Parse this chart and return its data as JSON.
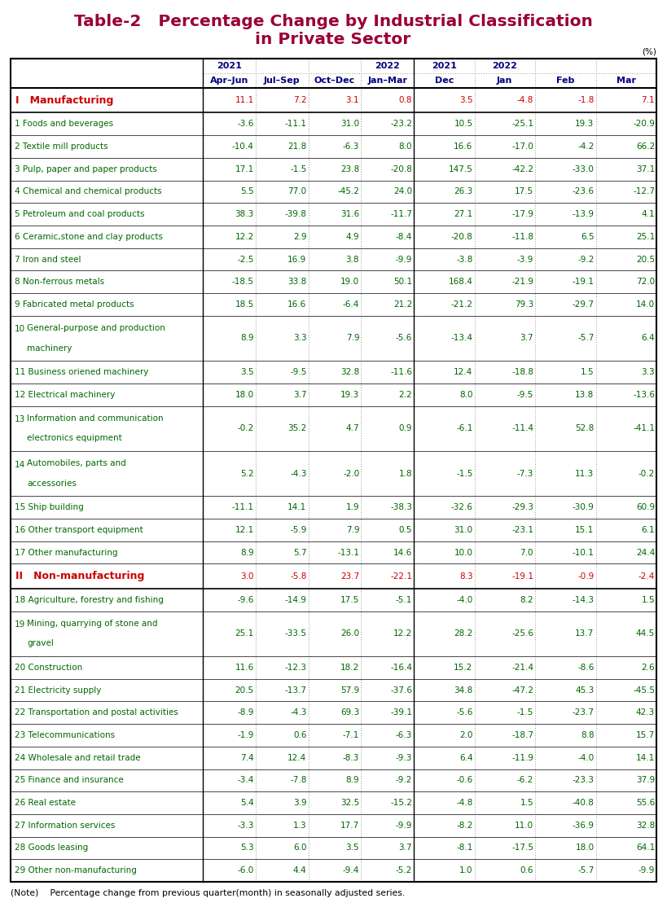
{
  "title_line1": "Table-2   Percentage Change by Industrial Classification",
  "title_line2": "in Private Sector",
  "title_color": "#990033",
  "header_color": "#000080",
  "note": "(Note)    Percentage change from previous quarter(month) in seasonally adjusted series.",
  "col_headers_top": [
    "2021",
    "",
    "",
    "2022",
    "2021",
    "2022",
    "",
    ""
  ],
  "col_headers_bot": [
    "Apr–Jun",
    "Jul–Sep",
    "Oct–Dec",
    "Jan–Mar",
    "Dec",
    "Jan",
    "Feb",
    "Mar"
  ],
  "rows": [
    {
      "label": "I   Manufacturing",
      "num": "",
      "label_color": "#cc0000",
      "is_section": true,
      "multiline": false,
      "vals": [
        11.1,
        7.2,
        3.1,
        0.8,
        3.5,
        -4.8,
        -1.8,
        7.1
      ]
    },
    {
      "label": "Foods and beverages",
      "num": "1",
      "label_color": "#006600",
      "is_section": false,
      "multiline": false,
      "vals": [
        -3.6,
        -11.1,
        31.0,
        -23.2,
        10.5,
        -25.1,
        19.3,
        -20.9
      ]
    },
    {
      "label": "Textile mill products",
      "num": "2",
      "label_color": "#006600",
      "is_section": false,
      "multiline": false,
      "vals": [
        -10.4,
        21.8,
        -6.3,
        8.0,
        16.6,
        -17.0,
        -4.2,
        66.2
      ]
    },
    {
      "label": "Pulp, paper and paper products",
      "num": "3",
      "label_color": "#006600",
      "is_section": false,
      "multiline": false,
      "vals": [
        17.1,
        -1.5,
        23.8,
        -20.8,
        147.5,
        -42.2,
        -33.0,
        37.1
      ]
    },
    {
      "label": "Chemical and chemical products",
      "num": "4",
      "label_color": "#006600",
      "is_section": false,
      "multiline": false,
      "vals": [
        5.5,
        77.0,
        -45.2,
        24.0,
        26.3,
        17.5,
        -23.6,
        -12.7
      ]
    },
    {
      "label": "Petroleum and coal products",
      "num": "5",
      "label_color": "#006600",
      "is_section": false,
      "multiline": false,
      "vals": [
        38.3,
        -39.8,
        31.6,
        -11.7,
        27.1,
        -17.9,
        -13.9,
        4.1
      ]
    },
    {
      "label": "Ceramic,stone and clay products",
      "num": "6",
      "label_color": "#006600",
      "is_section": false,
      "multiline": false,
      "vals": [
        12.2,
        2.9,
        4.9,
        -8.4,
        -20.8,
        -11.8,
        6.5,
        25.1
      ]
    },
    {
      "label": "Iron and steel",
      "num": "7",
      "label_color": "#006600",
      "is_section": false,
      "multiline": false,
      "vals": [
        -2.5,
        16.9,
        3.8,
        -9.9,
        -3.8,
        -3.9,
        -9.2,
        20.5
      ]
    },
    {
      "label": "Non-ferrous metals",
      "num": "8",
      "label_color": "#006600",
      "is_section": false,
      "multiline": false,
      "vals": [
        -18.5,
        33.8,
        19.0,
        50.1,
        168.4,
        -21.9,
        -19.1,
        72.0
      ]
    },
    {
      "label": "Fabricated metal products",
      "num": "9",
      "label_color": "#006600",
      "is_section": false,
      "multiline": false,
      "vals": [
        18.5,
        16.6,
        -6.4,
        21.2,
        -21.2,
        79.3,
        -29.7,
        14.0
      ]
    },
    {
      "label": "General-purpose and production\nmachinery",
      "num": "10",
      "label_color": "#006600",
      "is_section": false,
      "multiline": true,
      "vals": [
        8.9,
        3.3,
        7.9,
        -5.6,
        -13.4,
        3.7,
        -5.7,
        6.4
      ]
    },
    {
      "label": "Business oriened machinery",
      "num": "11",
      "label_color": "#006600",
      "is_section": false,
      "multiline": false,
      "vals": [
        3.5,
        -9.5,
        32.8,
        -11.6,
        12.4,
        -18.8,
        1.5,
        3.3
      ]
    },
    {
      "label": "Electrical machinery",
      "num": "12",
      "label_color": "#006600",
      "is_section": false,
      "multiline": false,
      "vals": [
        18.0,
        3.7,
        19.3,
        2.2,
        8.0,
        -9.5,
        13.8,
        -13.6
      ]
    },
    {
      "label": "Information and communication\nelectronics equipment",
      "num": "13",
      "label_color": "#006600",
      "is_section": false,
      "multiline": true,
      "vals": [
        -0.2,
        35.2,
        4.7,
        0.9,
        -6.1,
        -11.4,
        52.8,
        -41.1
      ]
    },
    {
      "label": "Automobiles, parts and\naccessories",
      "num": "14",
      "label_color": "#006600",
      "is_section": false,
      "multiline": true,
      "vals": [
        5.2,
        -4.3,
        -2.0,
        1.8,
        -1.5,
        -7.3,
        11.3,
        -0.2
      ]
    },
    {
      "label": "Ship building",
      "num": "15",
      "label_color": "#006600",
      "is_section": false,
      "multiline": false,
      "vals": [
        -11.1,
        14.1,
        1.9,
        -38.3,
        -32.6,
        -29.3,
        -30.9,
        60.9
      ]
    },
    {
      "label": "Other transport equipment",
      "num": "16",
      "label_color": "#006600",
      "is_section": false,
      "multiline": false,
      "vals": [
        12.1,
        -5.9,
        7.9,
        0.5,
        31.0,
        -23.1,
        15.1,
        6.1
      ]
    },
    {
      "label": "Other manufacturing",
      "num": "17",
      "label_color": "#006600",
      "is_section": false,
      "multiline": false,
      "vals": [
        8.9,
        5.7,
        -13.1,
        14.6,
        10.0,
        7.0,
        -10.1,
        24.4
      ]
    },
    {
      "label": "II   Non-manufacturing",
      "num": "",
      "label_color": "#cc0000",
      "is_section": true,
      "multiline": false,
      "vals": [
        3.0,
        -5.8,
        23.7,
        -22.1,
        8.3,
        -19.1,
        -0.9,
        -2.4
      ]
    },
    {
      "label": "Agriculture, forestry and fishing",
      "num": "18",
      "label_color": "#006600",
      "is_section": false,
      "multiline": false,
      "vals": [
        -9.6,
        -14.9,
        17.5,
        -5.1,
        -4.0,
        8.2,
        -14.3,
        1.5
      ]
    },
    {
      "label": "Mining, quarrying of stone and\ngravel",
      "num": "19",
      "label_color": "#006600",
      "is_section": false,
      "multiline": true,
      "vals": [
        25.1,
        -33.5,
        26.0,
        12.2,
        28.2,
        -25.6,
        13.7,
        44.5
      ]
    },
    {
      "label": "Construction",
      "num": "20",
      "label_color": "#006600",
      "is_section": false,
      "multiline": false,
      "vals": [
        11.6,
        -12.3,
        18.2,
        -16.4,
        15.2,
        -21.4,
        -8.6,
        2.6
      ]
    },
    {
      "label": "Electricity supply",
      "num": "21",
      "label_color": "#006600",
      "is_section": false,
      "multiline": false,
      "vals": [
        20.5,
        -13.7,
        57.9,
        -37.6,
        34.8,
        -47.2,
        45.3,
        -45.5
      ]
    },
    {
      "label": "Transportation and postal activities",
      "num": "22",
      "label_color": "#006600",
      "is_section": false,
      "multiline": false,
      "vals": [
        -8.9,
        -4.3,
        69.3,
        -39.1,
        -5.6,
        -1.5,
        -23.7,
        42.3
      ]
    },
    {
      "label": "Telecommunications",
      "num": "23",
      "label_color": "#006600",
      "is_section": false,
      "multiline": false,
      "vals": [
        -1.9,
        0.6,
        -7.1,
        -6.3,
        2.0,
        -18.7,
        8.8,
        15.7
      ]
    },
    {
      "label": "Wholesale and retail trade",
      "num": "24",
      "label_color": "#006600",
      "is_section": false,
      "multiline": false,
      "vals": [
        7.4,
        12.4,
        -8.3,
        -9.3,
        6.4,
        -11.9,
        -4.0,
        14.1
      ]
    },
    {
      "label": "Finance and insurance",
      "num": "25",
      "label_color": "#006600",
      "is_section": false,
      "multiline": false,
      "vals": [
        -3.4,
        -7.8,
        8.9,
        -9.2,
        -0.6,
        -6.2,
        -23.3,
        37.9
      ]
    },
    {
      "label": "Real estate",
      "num": "26",
      "label_color": "#006600",
      "is_section": false,
      "multiline": false,
      "vals": [
        5.4,
        3.9,
        32.5,
        -15.2,
        -4.8,
        1.5,
        -40.8,
        55.6
      ]
    },
    {
      "label": "Information services",
      "num": "27",
      "label_color": "#006600",
      "is_section": false,
      "multiline": false,
      "vals": [
        -3.3,
        1.3,
        17.7,
        -9.9,
        -8.2,
        11.0,
        -36.9,
        32.8
      ]
    },
    {
      "label": "Goods leasing",
      "num": "28",
      "label_color": "#006600",
      "is_section": false,
      "multiline": false,
      "vals": [
        5.3,
        6.0,
        3.5,
        3.7,
        -8.1,
        -17.5,
        18.0,
        64.1
      ]
    },
    {
      "label": "Other non-manufacturing",
      "num": "29",
      "label_color": "#006600",
      "is_section": false,
      "multiline": false,
      "vals": [
        -6.0,
        4.4,
        -9.4,
        -5.2,
        1.0,
        0.6,
        -5.7,
        -9.9
      ]
    }
  ],
  "val_color": "#006600",
  "section_val_color": "#cc0000",
  "bg_color": "#ffffff"
}
